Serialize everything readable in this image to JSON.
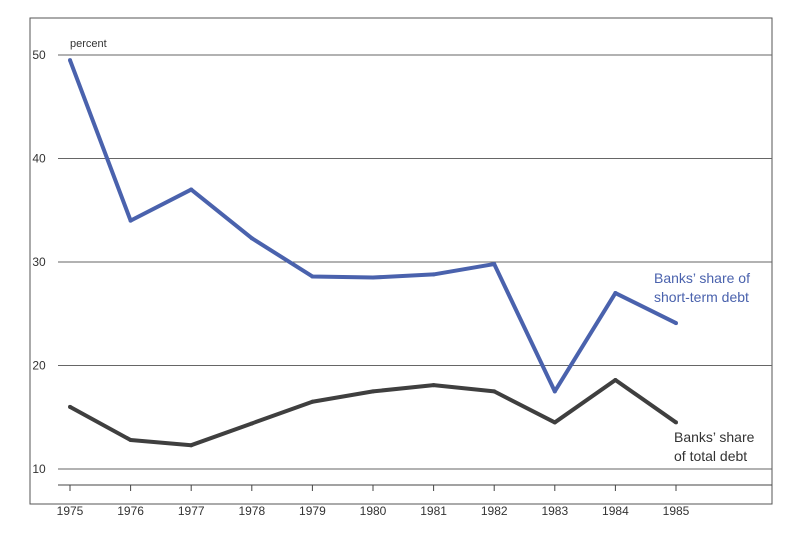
{
  "chart_data": {
    "type": "line",
    "title": "",
    "xlabel": "",
    "ylabel": "",
    "y_unit_label": "percent",
    "x": [
      "1975",
      "1976",
      "1977",
      "1978",
      "1979",
      "1980",
      "1981",
      "1982",
      "1983",
      "1984",
      "1985"
    ],
    "ylim": [
      10,
      50
    ],
    "y_ticks": [
      "50",
      "40",
      "30",
      "20",
      "10"
    ],
    "grid": "horizontal",
    "series": [
      {
        "label_lines": [
          "Banks’ share of",
          "short-term debt"
        ],
        "color": "#4a62ad",
        "values": [
          49.5,
          34.0,
          37.0,
          32.3,
          28.6,
          28.5,
          28.8,
          29.8,
          17.5,
          27.0,
          24.1
        ]
      },
      {
        "label_lines": [
          "Banks’ share",
          "of total debt"
        ],
        "color": "#3f3f3f",
        "values": [
          16.0,
          12.8,
          12.3,
          14.4,
          16.5,
          17.5,
          18.1,
          17.5,
          14.5,
          18.6,
          14.5
        ]
      }
    ]
  }
}
